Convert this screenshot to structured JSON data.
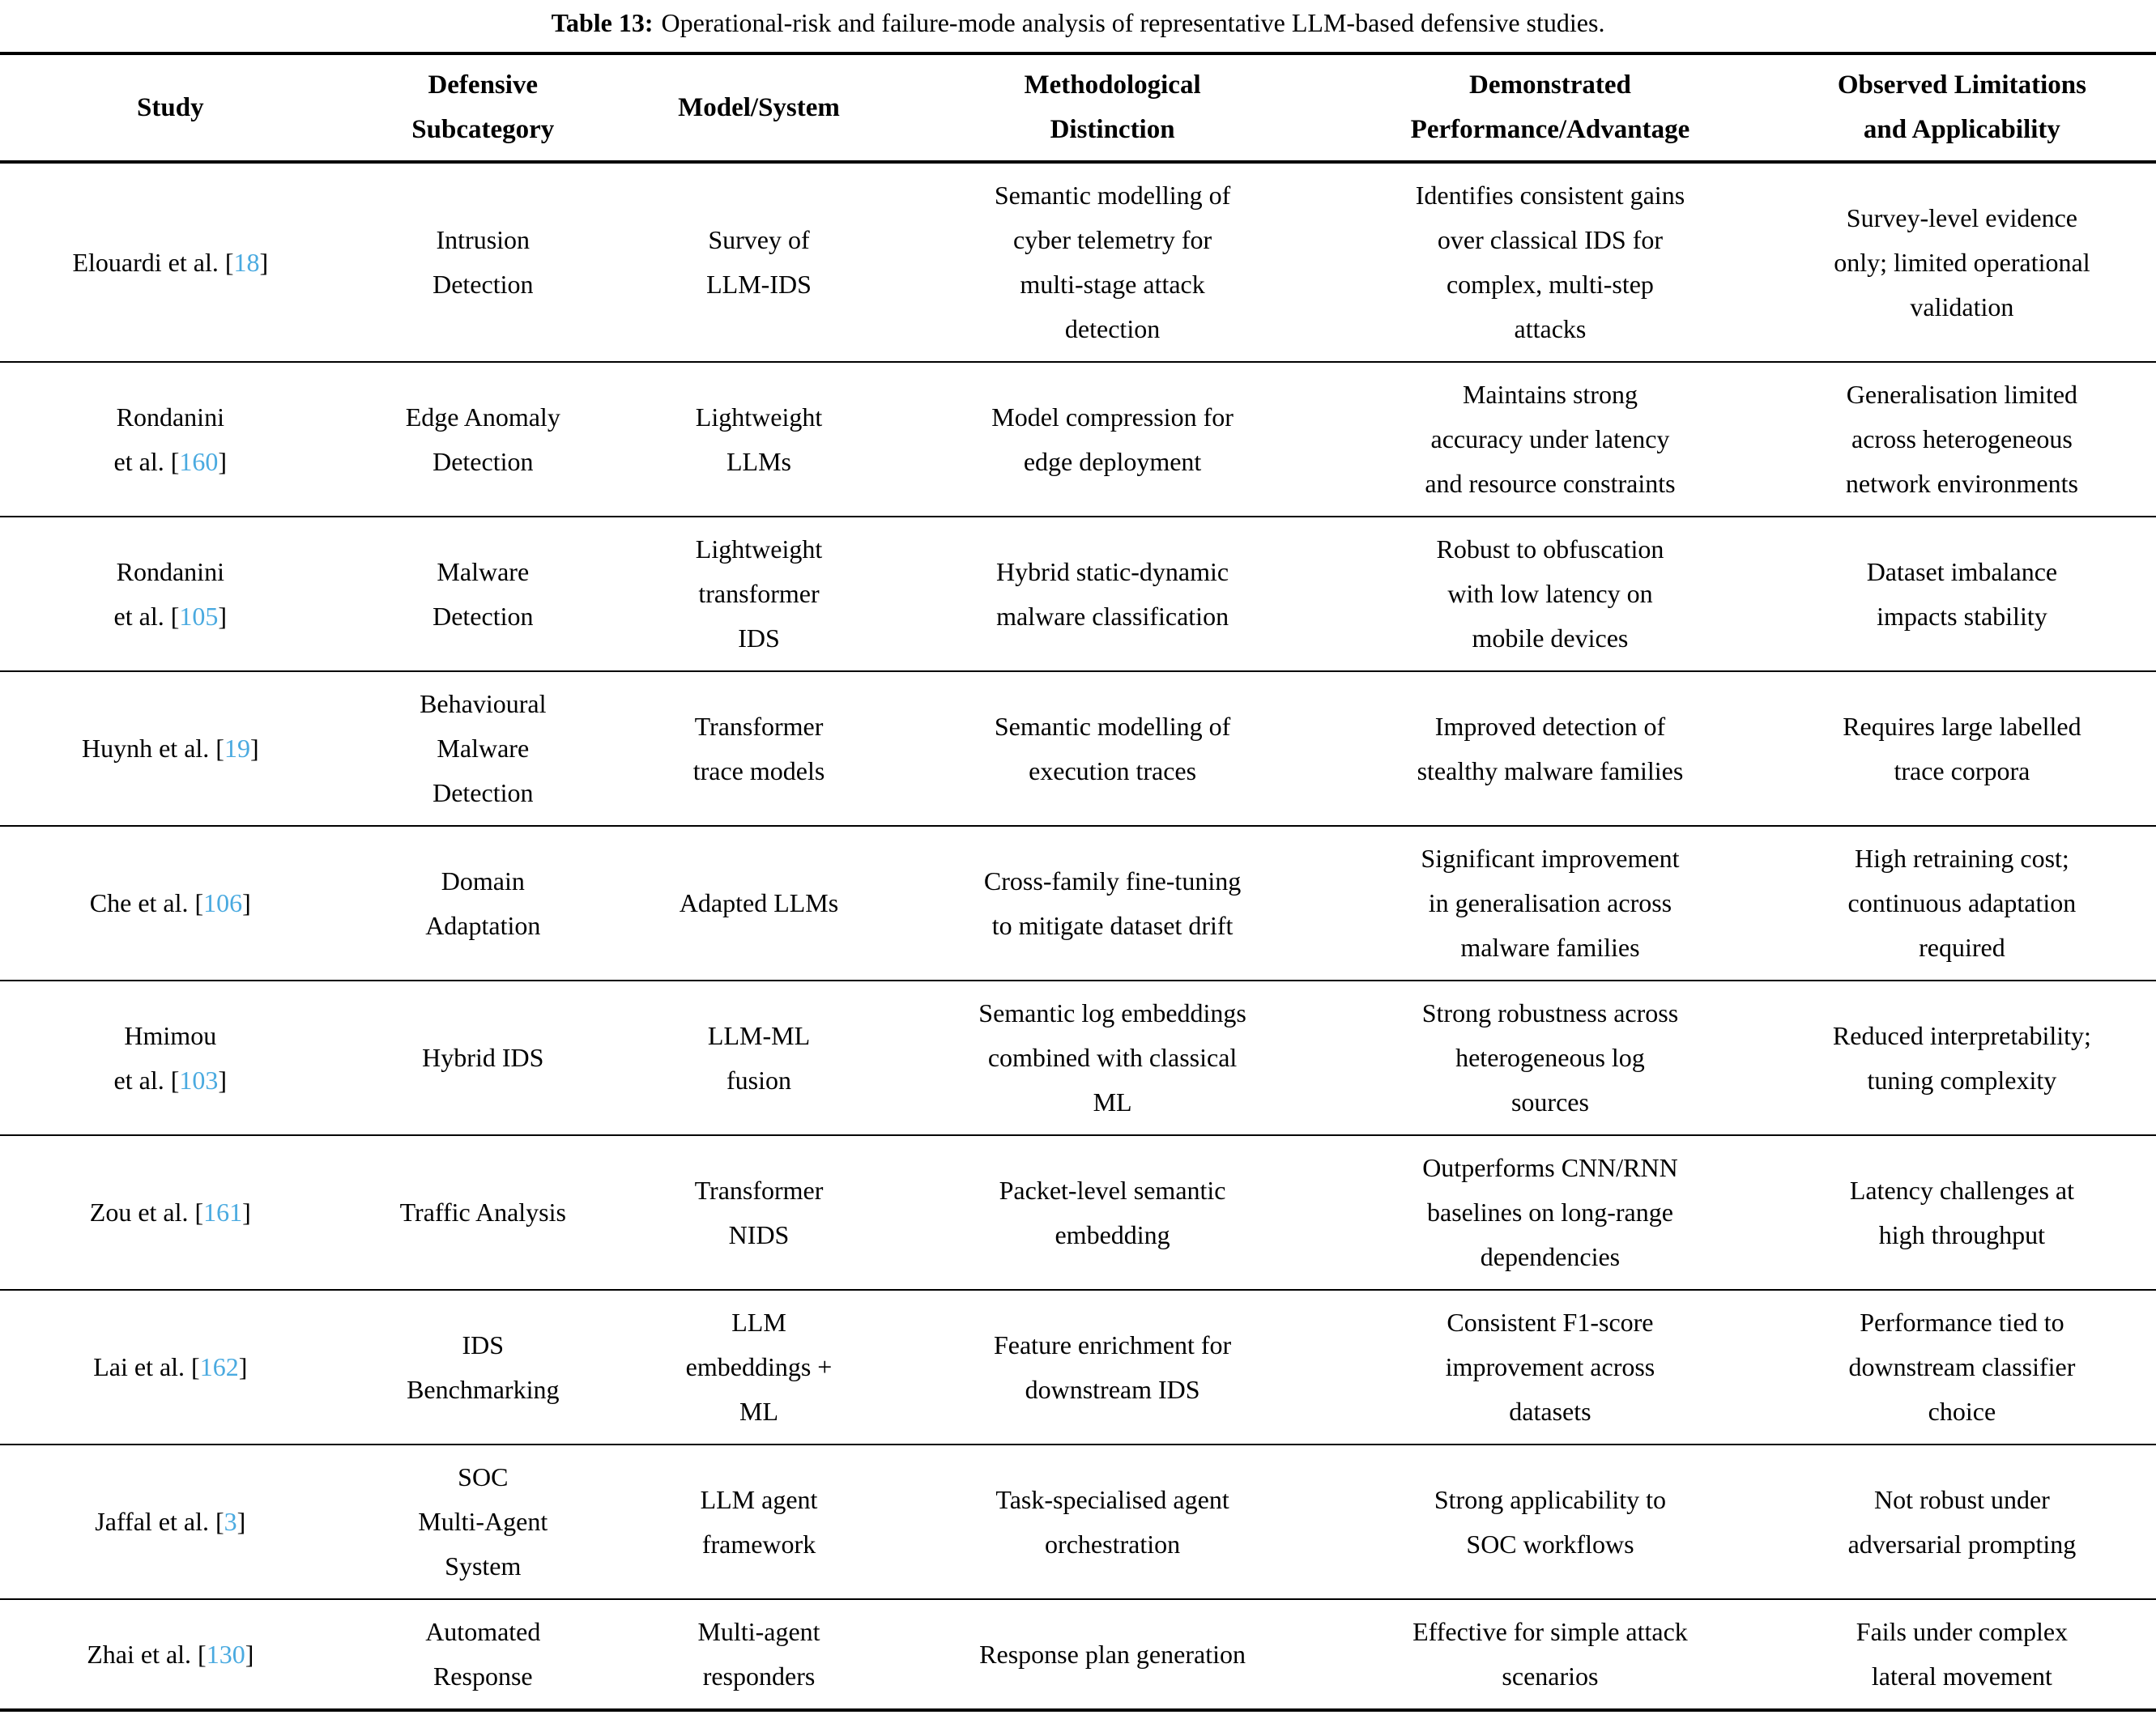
{
  "caption": {
    "label": "Table 13:",
    "text": "Operational-risk and failure-mode analysis of representative LLM-based defensive studies."
  },
  "colors": {
    "citation_link": "#4aaae0",
    "rule": "#000000",
    "text": "#000000",
    "background": "#ffffff"
  },
  "table": {
    "columns": [
      "Study",
      "Defensive\nSubcategory",
      "Model/System",
      "Methodological\nDistinction",
      "Demonstrated\nPerformance/Advantage",
      "Observed Limitations\nand Applicability"
    ],
    "rows": [
      {
        "study": "Elouardi et al.",
        "citation": "18",
        "subcategory": "Intrusion\nDetection",
        "model": "Survey of\nLLM-IDS",
        "distinction": "Semantic modelling of\ncyber telemetry for\nmulti-stage attack\ndetection",
        "performance": "Identifies consistent gains\nover classical IDS for\ncomplex, multi-step\nattacks",
        "limitations": "Survey-level evidence\nonly; limited operational\nvalidation"
      },
      {
        "study": "Rondanini\net al.",
        "citation": "160",
        "subcategory": "Edge Anomaly\nDetection",
        "model": "Lightweight\nLLMs",
        "distinction": "Model compression for\nedge deployment",
        "performance": "Maintains strong\naccuracy under latency\nand resource constraints",
        "limitations": "Generalisation limited\nacross heterogeneous\nnetwork environments"
      },
      {
        "study": "Rondanini\net al.",
        "citation": "105",
        "subcategory": "Malware\nDetection",
        "model": "Lightweight\ntransformer\nIDS",
        "distinction": "Hybrid static-dynamic\nmalware classification",
        "performance": "Robust to obfuscation\nwith low latency on\nmobile devices",
        "limitations": "Dataset imbalance\nimpacts stability"
      },
      {
        "study": "Huynh et al.",
        "citation": "19",
        "subcategory": "Behavioural\nMalware\nDetection",
        "model": "Transformer\ntrace models",
        "distinction": "Semantic modelling of\nexecution traces",
        "performance": "Improved detection of\nstealthy malware families",
        "limitations": "Requires large labelled\ntrace corpora"
      },
      {
        "study": "Che et al.",
        "citation": "106",
        "subcategory": "Domain\nAdaptation",
        "model": "Adapted LLMs",
        "distinction": "Cross-family fine-tuning\nto mitigate dataset drift",
        "performance": "Significant improvement\nin generalisation across\nmalware families",
        "limitations": "High retraining cost;\ncontinuous adaptation\nrequired"
      },
      {
        "study": "Hmimou\net al.",
        "citation": "103",
        "subcategory": "Hybrid IDS",
        "model": "LLM-ML\nfusion",
        "distinction": "Semantic log embeddings\ncombined with classical\nML",
        "performance": "Strong robustness across\nheterogeneous log\nsources",
        "limitations": "Reduced interpretability;\ntuning complexity"
      },
      {
        "study": "Zou et al.",
        "citation": "161",
        "subcategory": "Traffic Analysis",
        "model": "Transformer\nNIDS",
        "distinction": "Packet-level semantic\nembedding",
        "performance": "Outperforms CNN/RNN\nbaselines on long-range\ndependencies",
        "limitations": "Latency challenges at\nhigh throughput"
      },
      {
        "study": "Lai et al.",
        "citation": "162",
        "subcategory": "IDS\nBenchmarking",
        "model": "LLM\nembeddings +\nML",
        "distinction": "Feature enrichment for\ndownstream IDS",
        "performance": "Consistent F1-score\nimprovement across\ndatasets",
        "limitations": "Performance tied to\ndownstream classifier\nchoice"
      },
      {
        "study": "Jaffal et al.",
        "citation": "3",
        "subcategory": "SOC\nMulti-Agent\nSystem",
        "model": "LLM agent\nframework",
        "distinction": "Task-specialised agent\norchestration",
        "performance": "Strong applicability to\nSOC workflows",
        "limitations": "Not robust under\nadversarial prompting"
      },
      {
        "study": "Zhai et al.",
        "citation": "130",
        "subcategory": "Automated\nResponse",
        "model": "Multi-agent\nresponders",
        "distinction": "Response plan generation",
        "performance": "Effective for simple attack\nscenarios",
        "limitations": "Fails under complex\nlateral movement"
      }
    ]
  }
}
